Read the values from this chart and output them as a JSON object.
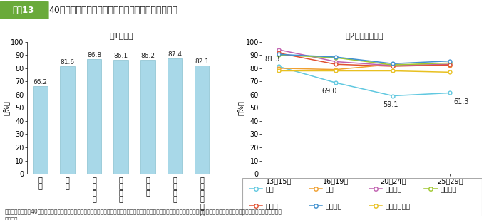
{
  "title": "40歳になったときのイメージ（幸せになっている）",
  "fig_label": "図表13",
  "subtitle_left": "（1）全体",
  "subtitle_right": "（2）年齢階級別",
  "bar_categories": [
    "日\n本",
    "韓\n国",
    "ア\nメ\nリ\nカ",
    "イ\nギ\nリ\nス",
    "ド\nイ\nツ",
    "フ\nラ\nン\nス",
    "ス\nウ\nェ\nー\nデ\nン"
  ],
  "bar_categories_plain": [
    "日本",
    "韓国",
    "アメリカ",
    "イギリス",
    "ドイツ",
    "フランス",
    "スウェーデン"
  ],
  "bar_values": [
    66.2,
    81.6,
    86.8,
    86.1,
    86.2,
    87.4,
    82.1
  ],
  "bar_color": "#a8d8e8",
  "bar_edge_color": "#88c0d0",
  "ylabel": "（%）",
  "ylim_bar": [
    0,
    100
  ],
  "yticks_bar": [
    0,
    10,
    20,
    30,
    40,
    50,
    60,
    70,
    80,
    90,
    100
  ],
  "line_x_labels": [
    "13～15歳",
    "16～19歳",
    "20～24歳",
    "25～29歳"
  ],
  "line_series": {
    "日本": [
      81.3,
      69.0,
      59.1,
      61.3
    ],
    "韓国": [
      80.0,
      79.0,
      83.0,
      82.0
    ],
    "アメリカ": [
      94.0,
      85.0,
      82.0,
      83.0
    ],
    "イギリス": [
      90.0,
      88.0,
      82.5,
      84.0
    ],
    "ドイツ": [
      91.5,
      83.0,
      81.5,
      82.5
    ],
    "フランス": [
      90.5,
      88.5,
      83.5,
      85.5
    ],
    "スウェーデン": [
      78.0,
      78.0,
      78.0,
      77.0
    ]
  },
  "line_colors": {
    "日本": "#60c8e0",
    "韓国": "#f0a030",
    "アメリカ": "#c060b0",
    "イギリス": "#a0c830",
    "ドイツ": "#e05030",
    "フランス": "#4090d0",
    "スウェーデン": "#e8c020"
  },
  "line_annotations_japan": [
    "81.3",
    "69.0",
    "59.1",
    "61.3"
  ],
  "ylim_line": [
    0,
    100
  ],
  "yticks_line": [
    0,
    10,
    20,
    30,
    40,
    50,
    60,
    70,
    80,
    90,
    100
  ],
  "note": "（注）「あなたが40歳くらいになったとき、どのようになっていると思いますか。」との問いに対し、「幸せになっている」に「そう思う」「どちらかといえばそう思う」と回答した者",
  "note2": "の合計。",
  "header_bg": "#6aaa3a",
  "header_text_color": "#ffffff",
  "background_color": "#ffffff"
}
